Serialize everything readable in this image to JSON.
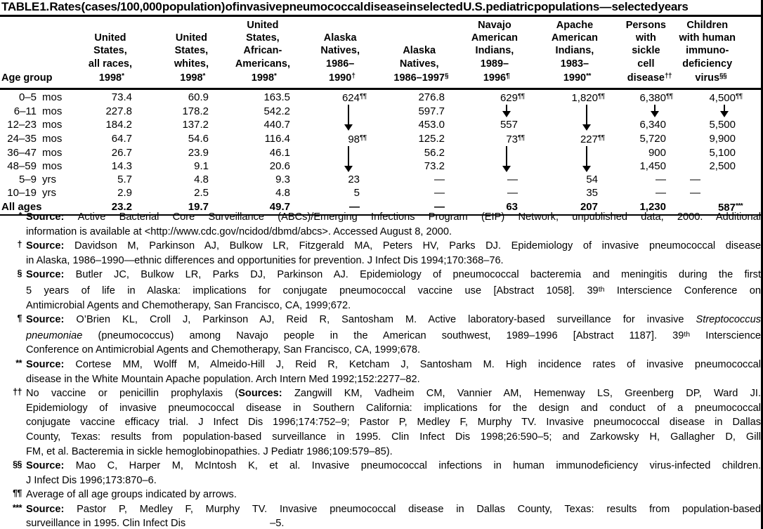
{
  "title": "TABLE 1. Rates (cases/100,000 population) of invasive pneumococcal disease in selected U.S. pediatric populations — selected years",
  "table": {
    "age_group_label": "Age group",
    "columns": [
      {
        "lines": [
          "United",
          "States,",
          "all races,",
          "1998"
        ],
        "sup": "*"
      },
      {
        "lines": [
          "United",
          "States,",
          "whites,",
          "1998"
        ],
        "sup": "*"
      },
      {
        "lines": [
          "United",
          "States,",
          "African-",
          "Americans,",
          "1998"
        ],
        "sup": "*"
      },
      {
        "lines": [
          "Alaska",
          "Natives,",
          "1986–",
          "1990"
        ],
        "sup": "†"
      },
      {
        "lines": [
          "Alaska",
          "Natives,",
          "1986–1997"
        ],
        "sup": "§"
      },
      {
        "lines": [
          "Navajo",
          "American",
          "Indians,",
          "1989–",
          "1996"
        ],
        "sup": "¶"
      },
      {
        "lines": [
          "Apache",
          "American",
          "Indians,",
          "1983–",
          "1990"
        ],
        "sup": "**"
      },
      {
        "lines": [
          "Persons",
          "with",
          "sickle",
          "cell",
          "disease"
        ],
        "sup": "††"
      },
      {
        "lines": [
          "Children",
          "with human",
          "immuno-",
          "deficiency",
          "virus"
        ],
        "sup": "§§"
      }
    ],
    "rows": [
      {
        "age": "0–5",
        "unit": "mos",
        "cells": [
          "73.4",
          "60.9",
          "163.5",
          {
            "v": "624",
            "sup": "¶¶"
          },
          "276.8",
          {
            "v": "629",
            "sup": "¶¶"
          },
          {
            "v": "1,820",
            "sup": "¶¶"
          },
          {
            "v": "6,380",
            "sup": "¶¶"
          },
          {
            "v": "4,500",
            "sup": "¶¶"
          }
        ]
      },
      {
        "age": "6–11",
        "unit": "mos",
        "cells": [
          "227.8",
          "178.2",
          "542.2",
          {
            "arrow": "shaft"
          },
          "597.7",
          {
            "arrow": "head"
          },
          {
            "arrow": "shaft"
          },
          {
            "arrow": "head"
          },
          {
            "arrow": "head"
          }
        ]
      },
      {
        "age": "12–23",
        "unit": "mos",
        "cells": [
          "184.2",
          "137.2",
          "440.7",
          {
            "arrow": "head"
          },
          "453.0",
          "557",
          {
            "arrow": "head"
          },
          "6,340",
          "5,500"
        ]
      },
      {
        "age": "24–35",
        "unit": "mos",
        "cells": [
          "64.7",
          "54.6",
          "116.4",
          {
            "v": "98",
            "sup": "¶¶"
          },
          "125.2",
          {
            "v": "73",
            "sup": "¶¶"
          },
          {
            "v": "227",
            "sup": "¶¶"
          },
          "5,720",
          "9,900"
        ]
      },
      {
        "age": "36–47",
        "unit": "mos",
        "cells": [
          "26.7",
          "23.9",
          "46.1",
          {
            "arrow": "shaft"
          },
          "56.2",
          {
            "arrow": "shaft"
          },
          {
            "arrow": "shaft"
          },
          "900",
          "5,100"
        ]
      },
      {
        "age": "48–59",
        "unit": "mos",
        "cells": [
          "14.3",
          "9.1",
          "20.6",
          {
            "arrow": "head"
          },
          "73.2",
          {
            "arrow": "head"
          },
          {
            "arrow": "head"
          },
          "1,450",
          "2,500"
        ]
      },
      {
        "age": "5–9",
        "unit": "yrs",
        "cells": [
          "5.7",
          "4.8",
          "9.3",
          "23",
          "—",
          "—",
          "54",
          "—",
          {
            "v": "—",
            "shift": true
          }
        ]
      },
      {
        "age": "10–19",
        "unit": "yrs",
        "cells": [
          "2.9",
          "2.5",
          "4.8",
          "5",
          "—",
          "—",
          "35",
          "—",
          {
            "v": "—",
            "shift": true
          }
        ]
      },
      {
        "age": "All ages",
        "unit": "",
        "bold": true,
        "cells": [
          "23.2",
          "19.7",
          "49.7",
          "—",
          "—",
          "63",
          "207",
          "1,230",
          {
            "v": "587",
            "sup": "***"
          }
        ]
      }
    ]
  },
  "footnotes": [
    {
      "symbol": "*",
      "lines": [
        [
          {
            "t": "Source: ",
            "b": true
          },
          {
            "t": "Active Bacterial Core Surveillance (ABCs)/Emerging Infections Program (EIP) Network, unpublished data, 2000. Additional"
          }
        ],
        [
          {
            "t": "information is available at <http://www.cdc.gov/ncidod/dbmd/abcs>. Accessed August 8, 2000."
          }
        ]
      ]
    },
    {
      "symbol": "†",
      "lines": [
        [
          {
            "t": "Source: ",
            "b": true
          },
          {
            "t": "Davidson M, Parkinson AJ, Bulkow LR, Fitzgerald MA, Peters HV, Parks DJ. Epidemiology of invasive pneumococcal disease"
          }
        ],
        [
          {
            "t": "in Alaska, 1986–1990—ethnic differences and opportunities for prevention. J Infect Dis 1994;170:368–76."
          }
        ]
      ]
    },
    {
      "symbol": "§",
      "lines": [
        [
          {
            "t": "Source: ",
            "b": true
          },
          {
            "t": "Butler JC, Bulkow LR, Parks DJ, Parkinson AJ. Epidemiology of pneumococcal bacteremia and meningitis during the first"
          }
        ],
        [
          {
            "t": "5 years of life in Alaska: implications for conjugate pneumococcal vaccine use [Abstract 1058]. 39"
          },
          {
            "t": "th",
            "sup": true
          },
          {
            "t": " Interscience Conference on"
          }
        ],
        [
          {
            "t": "Antimicrobial Agents and Chemotherapy, San Francisco, CA, 1999;672."
          }
        ]
      ]
    },
    {
      "symbol": "¶",
      "lines": [
        [
          {
            "t": "Source: ",
            "b": true
          },
          {
            "t": "O’Brien KL, Croll J, Parkinson AJ, Reid R, Santosham M. Active laboratory-based surveillance for invasive "
          },
          {
            "t": "Streptococcus",
            "i": true
          }
        ],
        [
          {
            "t": "pneumoniae",
            "i": true
          },
          {
            "t": " (pneumococcus) among Navajo people in the American southwest, 1989–1996 [Abstract 1187]. 39"
          },
          {
            "t": "th",
            "sup": true
          },
          {
            "t": " Interscience"
          }
        ],
        [
          {
            "t": "Conference on Antimicrobial Agents and Chemotherapy, San Francisco, CA, 1999;678."
          }
        ]
      ]
    },
    {
      "symbol": "**",
      "lines": [
        [
          {
            "t": "Source: ",
            "b": true
          },
          {
            "t": "Cortese MM, Wolff M, Almeido-Hill J, Reid R, Ketcham J, Santosham M. High incidence rates of invasive pneumococcal"
          }
        ],
        [
          {
            "t": "disease in the White Mountain Apache population. Arch Intern Med 1992;152:2277–82."
          }
        ]
      ]
    },
    {
      "symbol": "††",
      "lines": [
        [
          {
            "t": "No vaccine or penicillin prophylaxis ("
          },
          {
            "t": "Sources: ",
            "b": true
          },
          {
            "t": "Zangwill KM, Vadheim CM, Vannier AM, Hemenway LS, Greenberg DP, Ward JI."
          }
        ],
        [
          {
            "t": "Epidemiology of invasive pneumococcal disease in Southern California: implications for the design and conduct of a pneumococcal"
          }
        ],
        [
          {
            "t": "conjugate vaccine efficacy trial. J Infect Dis 1996;174:752–9; Pastor P, Medley F, Murphy TV. Invasive pneumococcal disease in Dallas"
          }
        ],
        [
          {
            "t": "County, Texas: results from population-based surveillance in 1995. Clin Infect Dis 1998;26:590–5; and Zarkowsky H, Gallagher D, Gill"
          }
        ],
        [
          {
            "t": "FM, et al. Bacteremia in sickle hemoglobinopathies. J Pediatr 1986;109:579–85)."
          }
        ]
      ]
    },
    {
      "symbol": "§§",
      "lines": [
        [
          {
            "t": "Source: ",
            "b": true
          },
          {
            "t": "Mao C, Harper M, McIntosh K, et al. Invasive pneumococcal infections in human immunodeficiency virus-infected children."
          }
        ],
        [
          {
            "t": "J Infect Dis 1996;173:870–6."
          }
        ]
      ]
    },
    {
      "symbol": "¶¶",
      "lines": [
        [
          {
            "t": "Average of all age groups indicated by arrows."
          }
        ]
      ]
    },
    {
      "symbol": "***",
      "lines": [
        [
          {
            "t": "Source: ",
            "b": true
          },
          {
            "t": "Pastor P, Medley F, Murphy TV. Invasive pneumococcal disease in Dallas County, Texas: results from population-based"
          }
        ],
        [
          {
            "t": "surveillance in 1995. Clin Infect Dis"
          },
          {
            "t": "–5.",
            "gap": true
          }
        ]
      ]
    }
  ]
}
